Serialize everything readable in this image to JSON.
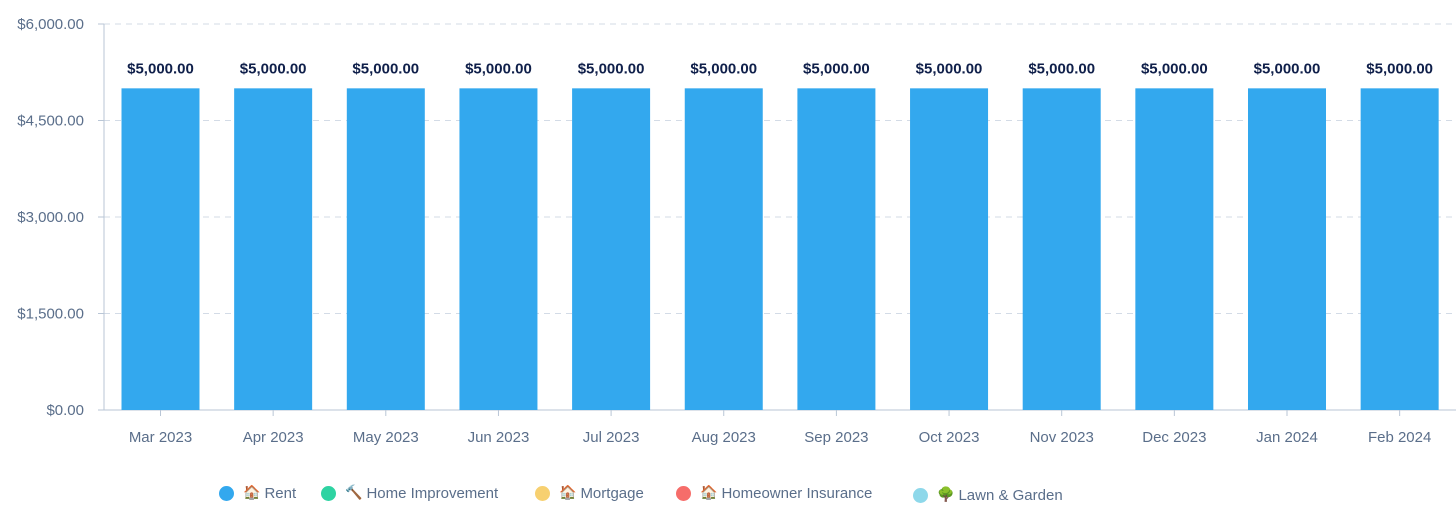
{
  "chart_data": {
    "type": "bar",
    "categories": [
      "Mar 2023",
      "Apr 2023",
      "May 2023",
      "Jun 2023",
      "Jul 2023",
      "Aug 2023",
      "Sep 2023",
      "Oct 2023",
      "Nov 2023",
      "Dec 2023",
      "Jan 2024",
      "Feb 2024"
    ],
    "series": [
      {
        "name": "🏠 Rent",
        "color": "#33a8ee",
        "values": [
          5000,
          5000,
          5000,
          5000,
          5000,
          5000,
          5000,
          5000,
          5000,
          5000,
          5000,
          5000
        ]
      },
      {
        "name": "🔨 Home Improvement",
        "color": "#2ed3a2",
        "values": [
          0,
          0,
          0,
          0,
          0,
          0,
          0,
          0,
          0,
          0,
          0,
          0
        ]
      },
      {
        "name": "🏠 Mortgage",
        "color": "#f7d070",
        "values": [
          0,
          0,
          0,
          0,
          0,
          0,
          0,
          0,
          0,
          0,
          0,
          0
        ]
      },
      {
        "name": "🏠 Homeowner Insurance",
        "color": "#f66d6a",
        "values": [
          0,
          0,
          0,
          0,
          0,
          0,
          0,
          0,
          0,
          0,
          0,
          0
        ]
      },
      {
        "name": "🌳 Lawn & Garden",
        "color": "#8ed8ea",
        "values": [
          0,
          0,
          0,
          0,
          0,
          0,
          0,
          0,
          0,
          0,
          0,
          0
        ]
      }
    ],
    "data_labels": [
      "$5,000.00",
      "$5,000.00",
      "$5,000.00",
      "$5,000.00",
      "$5,000.00",
      "$5,000.00",
      "$5,000.00",
      "$5,000.00",
      "$5,000.00",
      "$5,000.00",
      "$5,000.00",
      "$5,000.00"
    ],
    "y_ticks": [
      0,
      1500,
      3000,
      4500,
      6000
    ],
    "y_tick_labels": [
      "$0.00",
      "$1,500.00",
      "$3,000.00",
      "$4,500.00",
      "$6,000.00"
    ],
    "ylim": [
      0,
      6000
    ],
    "title": "",
    "xlabel": "",
    "ylabel": "",
    "grid": true,
    "legend_position": "bottom"
  },
  "legend": [
    {
      "emoji": "🏠",
      "label": "Rent",
      "color": "#33a8ee"
    },
    {
      "emoji": "🔨",
      "label": "Home Improvement",
      "color": "#2ed3a2"
    },
    {
      "emoji": "🏠",
      "label": "Mortgage",
      "color": "#f7d070"
    },
    {
      "emoji": "🏠",
      "label": "Homeowner Insurance",
      "color": "#f66d6a"
    },
    {
      "emoji": "🌳",
      "label": "Lawn & Garden",
      "color": "#8ed8ea"
    }
  ],
  "colors": {
    "grid": "#d3dbe6",
    "axis": "#b9c6d6",
    "tick_text": "#5a6e8a",
    "data_label": "#0f1f4a"
  }
}
